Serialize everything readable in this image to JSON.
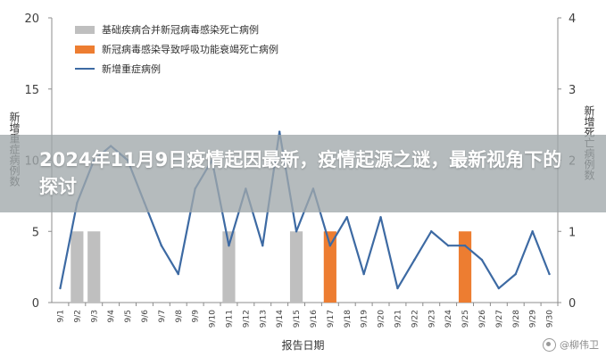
{
  "banner": {
    "title": "2024年11月9日疫情起因最新，疫情起源之谜，最新视角下的探讨"
  },
  "watermark": {
    "text": "@柳伟卫"
  },
  "chart_data": {
    "type": "bar+line",
    "xlabel": "报告日期",
    "ylabel_left": "新增重症病例数",
    "ylabel_right": "新增死亡病例数",
    "ylim_left": [
      0,
      20
    ],
    "yticks_left": [
      "0",
      "5",
      "10",
      "15",
      "20"
    ],
    "ylim_right": [
      0,
      4
    ],
    "yticks_right": [
      "0",
      "1",
      "2",
      "3",
      "4"
    ],
    "categories": [
      "9/1",
      "9/2",
      "9/3",
      "9/4",
      "9/5",
      "9/6",
      "9/7",
      "9/8",
      "9/9",
      "9/10",
      "9/11",
      "9/12",
      "9/13",
      "9/14",
      "9/15",
      "9/16",
      "9/17",
      "9/18",
      "9/19",
      "9/20",
      "9/21",
      "9/22",
      "9/23",
      "9/24",
      "9/25",
      "9/26",
      "9/27",
      "9/28",
      "9/29",
      "9/30"
    ],
    "series": [
      {
        "name": "基础疾病合并新冠病毒感染死亡病例",
        "type": "bar",
        "axis": "right",
        "color": "#bfbfbf",
        "values": [
          0,
          1,
          1,
          0,
          0,
          0,
          0,
          0,
          0,
          0,
          1,
          0,
          0,
          0,
          1,
          0,
          0,
          0,
          0,
          0,
          0,
          0,
          0,
          0,
          0,
          0,
          0,
          0,
          0,
          0
        ]
      },
      {
        "name": "新冠病毒感染导致呼吸功能衰竭死亡病例",
        "type": "bar",
        "axis": "right",
        "color": "#ed7d31",
        "values": [
          0,
          0,
          0,
          0,
          0,
          0,
          0,
          0,
          0,
          0,
          0,
          0,
          0,
          0,
          0,
          0,
          1,
          0,
          0,
          0,
          0,
          0,
          0,
          0,
          1,
          0,
          0,
          0,
          0,
          0
        ]
      },
      {
        "name": "新增重症病例",
        "type": "line",
        "axis": "left",
        "color": "#3d6aa3",
        "values": [
          1,
          7,
          10,
          11,
          10,
          7,
          4,
          2,
          8,
          10,
          4,
          8,
          4,
          12,
          5,
          8,
          4,
          6,
          2,
          6,
          1,
          3,
          5,
          4,
          4,
          3,
          1,
          2,
          5,
          2
        ]
      }
    ],
    "legend_position": "top-left",
    "grid": false
  }
}
